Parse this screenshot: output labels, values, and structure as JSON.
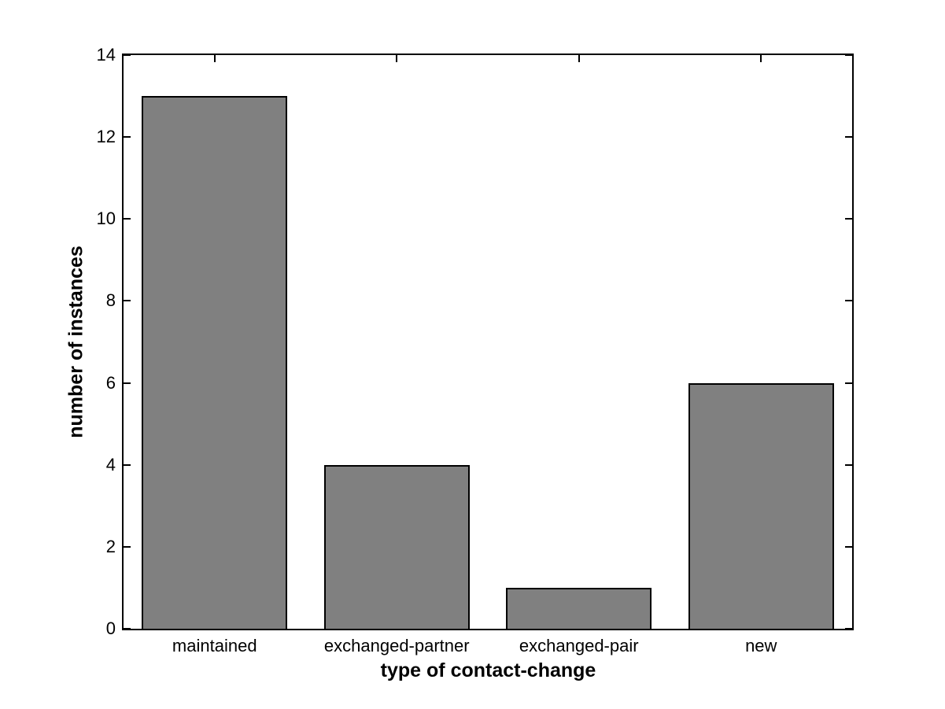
{
  "chart_data": {
    "type": "bar",
    "title": "",
    "categories": [
      "maintained",
      "exchanged-partner",
      "exchanged-pair",
      "new"
    ],
    "values": [
      13,
      4,
      1,
      6
    ],
    "xlabel": "type of contact-change",
    "ylabel": "number of instances",
    "ylim": [
      0,
      14
    ],
    "yticks": [
      0,
      2,
      4,
      6,
      8,
      10,
      12,
      14
    ],
    "xlim": [
      0.5,
      4.5
    ],
    "bar_width_fraction": 0.8,
    "bar_fill_color": "#808080",
    "bar_edge_color": "#000000",
    "axis_color": "#000000",
    "background_color": "#ffffff",
    "grid": false,
    "legend": null,
    "box": true,
    "tick_direction": "in"
  }
}
